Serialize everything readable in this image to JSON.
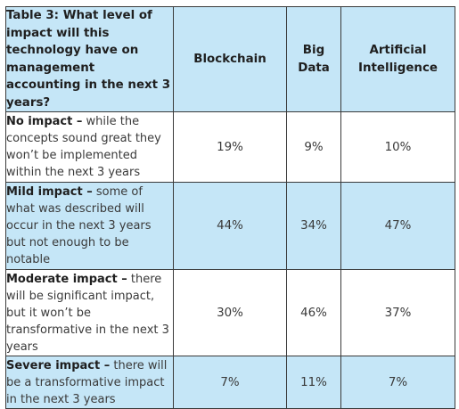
{
  "table": {
    "corner_title": "Table 3: What level of impact will this technology have on management accounting in the next 3 years?",
    "columns": [
      "Blockchain",
      "Big Data",
      "Artificial Intelligence"
    ],
    "rows": [
      {
        "label_bold": "No impact –",
        "label_rest": " while the concepts sound great they won’t be implemented within the next 3 years",
        "values": [
          "19%",
          "9%",
          "10%"
        ]
      },
      {
        "label_bold": "Mild impact –",
        "label_rest": " some of what was described will occur in the next 3 years but not enough to be notable",
        "values": [
          "44%",
          "34%",
          "47%"
        ]
      },
      {
        "label_bold": "Moderate impact –",
        "label_rest": " there will be significant impact, but it won’t be transformative in the next 3 years",
        "values": [
          "30%",
          "46%",
          "37%"
        ]
      },
      {
        "label_bold": "Severe impact –",
        "label_rest": " there will be a transformative impact in the next 3 years",
        "values": [
          "7%",
          "11%",
          "7%"
        ]
      }
    ]
  },
  "colors": {
    "shaded_row": "#c5e6f7",
    "border": "#3a3a3a"
  }
}
